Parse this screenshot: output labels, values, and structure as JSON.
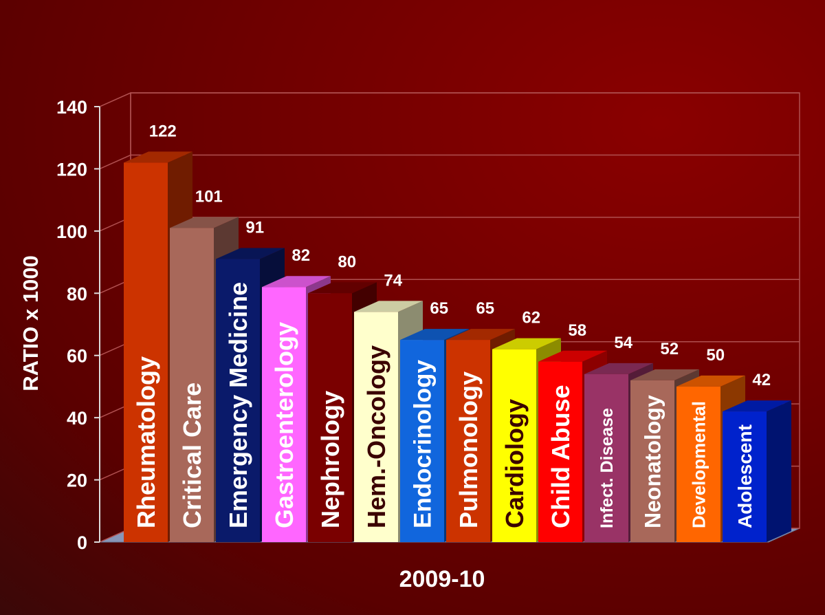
{
  "chart_data": {
    "type": "bar",
    "categories": [
      "Rheumatology",
      "Critical Care",
      "Emergency Medicine",
      "Gastroenterology",
      "Nephrology",
      "Hem.-Oncology",
      "Endocrinology",
      "Pulmonology",
      "Cardiology",
      "Child Abuse",
      "Infect. Disease",
      "Neonatology",
      "Developmental",
      "Adolescent"
    ],
    "values": [
      122,
      101,
      91,
      82,
      80,
      74,
      65,
      65,
      62,
      58,
      54,
      52,
      50,
      42
    ],
    "colors": [
      "#cc3300",
      "#a8685a",
      "#0a1a6a",
      "#ff66ff",
      "#7a0000",
      "#ffffcc",
      "#1166dd",
      "#cc3300",
      "#ffff00",
      "#ff0000",
      "#993366",
      "#a8685a",
      "#ff6600",
      "#0022cc"
    ],
    "label_colors": [
      "#ffffff",
      "#ffffff",
      "#ffffff",
      "#ffffff",
      "#ffffff",
      "#3a0000",
      "#ffffff",
      "#ffffff",
      "#3a0000",
      "#ffffff",
      "#ffffff",
      "#ffffff",
      "#ffffff",
      "#ffffff"
    ],
    "ylabel": "RATIO x 1000",
    "xlabel": "2009-10",
    "ylim": [
      0,
      140
    ],
    "yticks": [
      "0",
      "20",
      "40",
      "60",
      "80",
      "100",
      "120",
      "140"
    ],
    "grid": true
  }
}
